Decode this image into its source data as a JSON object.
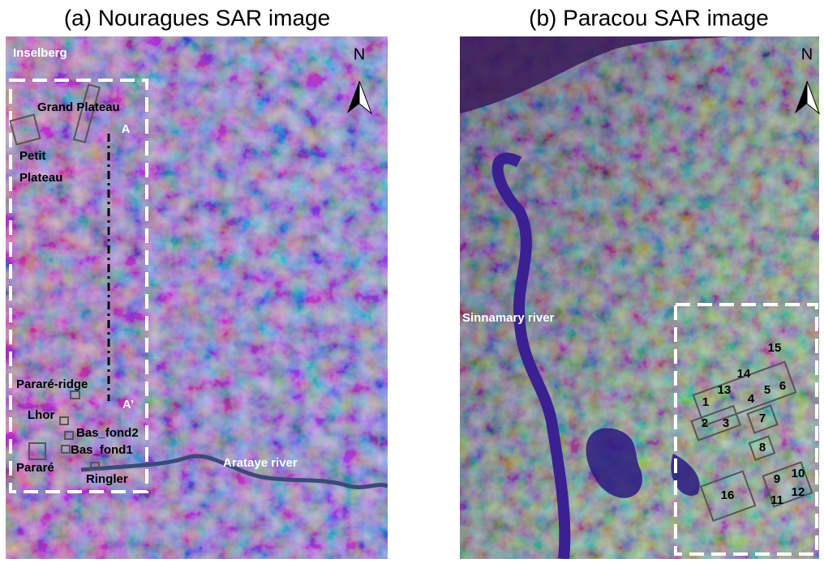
{
  "panels": [
    {
      "title": "(a) Nouragues SAR image",
      "north": "N",
      "labels": [
        "Inselberg",
        "Grand Plateau",
        "A",
        "Petit",
        "Plateau",
        "Pararé-ridge",
        "A’",
        "Lhor",
        "Bas_fond2",
        "Bas_fond1",
        "Pararé",
        "Ringler",
        "Arataye river"
      ]
    },
    {
      "title": "(b) Paracou SAR image",
      "north": "N",
      "labels": [
        "Sinnamary river",
        "15",
        "14",
        "13",
        "4",
        "5",
        "6",
        "1",
        "2",
        "3",
        "7",
        "8",
        "9",
        "10",
        "16",
        "11",
        "12"
      ]
    }
  ]
}
